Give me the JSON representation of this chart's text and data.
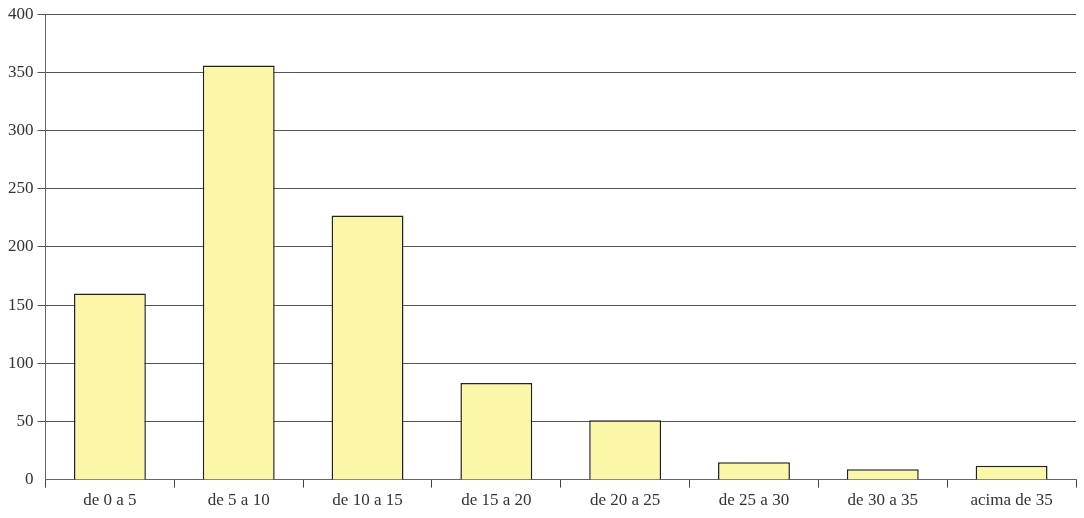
{
  "chart_data": {
    "type": "bar",
    "categories": [
      "de 0 a 5",
      "de 5 a 10",
      "de 10 a 15",
      "de 15 a 20",
      "de 20 a 25",
      "de 25 a 30",
      "de 30 a 35",
      "acima de 35"
    ],
    "values": [
      160,
      356,
      227,
      83,
      51,
      15,
      9,
      12
    ],
    "color": "#fbf6a8",
    "ylim": [
      0,
      400
    ],
    "yticks": [
      0,
      50,
      100,
      150,
      200,
      250,
      300,
      350,
      400
    ],
    "grid": "y",
    "legend": false
  }
}
